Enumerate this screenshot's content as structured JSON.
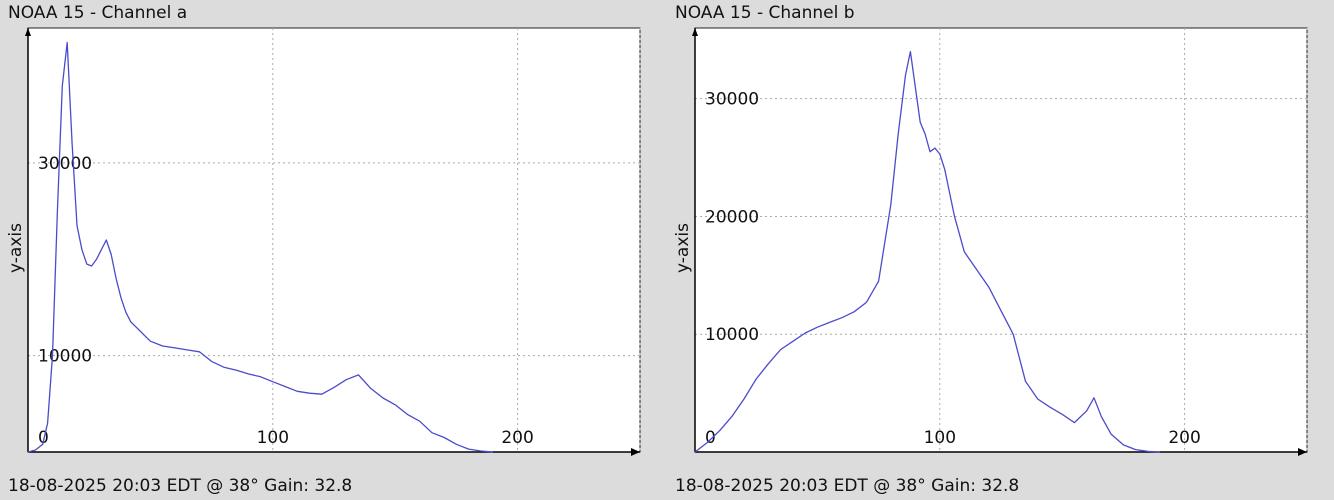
{
  "chart_data": [
    {
      "type": "line",
      "title": "NOAA 15 - Channel a",
      "footer": "18-08-2025 20:03 EDT @ 38° Gain: 32.8",
      "xlabel": "",
      "ylabel": "y-axis",
      "xlim": [
        0,
        250
      ],
      "ylim": [
        0,
        44000
      ],
      "x_ticks": [
        0,
        100,
        200
      ],
      "y_ticks": [
        10000,
        30000
      ],
      "grid": true,
      "line_color": "#4b4bcc",
      "series": [
        {
          "x": [
            0,
            3,
            6,
            8,
            10,
            12,
            14,
            16,
            18,
            20,
            22,
            24,
            26,
            28,
            30,
            32,
            34,
            36,
            38,
            40,
            42,
            44,
            46,
            48,
            50,
            55,
            60,
            65,
            70,
            75,
            80,
            85,
            90,
            95,
            100,
            105,
            110,
            115,
            120,
            125,
            130,
            135,
            140,
            145,
            150,
            155,
            160,
            165,
            170,
            175,
            180,
            185,
            190
          ],
          "y": [
            0,
            200,
            800,
            3000,
            10000,
            25000,
            38000,
            42500,
            32000,
            23500,
            21000,
            19500,
            19300,
            20000,
            21000,
            22000,
            20500,
            18000,
            16000,
            14500,
            13500,
            13000,
            12500,
            12000,
            11500,
            11000,
            10800,
            10600,
            10400,
            9400,
            8800,
            8500,
            8100,
            7800,
            7300,
            6800,
            6300,
            6100,
            6000,
            6700,
            7500,
            8000,
            6600,
            5600,
            4900,
            3900,
            3200,
            2000,
            1500,
            800,
            300,
            100,
            0
          ]
        }
      ]
    },
    {
      "type": "line",
      "title": "NOAA 15 - Channel b",
      "footer": "18-08-2025 20:03 EDT @ 38° Gain: 32.8",
      "xlabel": "",
      "ylabel": "y-axis",
      "xlim": [
        0,
        250
      ],
      "ylim": [
        0,
        36000
      ],
      "x_ticks": [
        0,
        100,
        200
      ],
      "y_ticks": [
        10000,
        20000,
        30000
      ],
      "grid": true,
      "line_color": "#4b4bcc",
      "series": [
        {
          "x": [
            0,
            5,
            10,
            15,
            20,
            25,
            30,
            35,
            40,
            45,
            50,
            55,
            60,
            65,
            70,
            75,
            80,
            83,
            86,
            88,
            90,
            92,
            94,
            96,
            98,
            100,
            102,
            104,
            106,
            108,
            110,
            115,
            120,
            125,
            130,
            135,
            140,
            145,
            150,
            155,
            160,
            163,
            166,
            170,
            175,
            180,
            185,
            190
          ],
          "y": [
            0,
            800,
            1800,
            3000,
            4500,
            6200,
            7500,
            8700,
            9400,
            10100,
            10600,
            11000,
            11400,
            11900,
            12700,
            14500,
            21000,
            27000,
            32000,
            34000,
            31000,
            28000,
            27000,
            25500,
            25800,
            25300,
            24000,
            22000,
            20000,
            18500,
            17000,
            15500,
            14000,
            12000,
            10000,
            6000,
            4500,
            3800,
            3200,
            2500,
            3500,
            4600,
            3000,
            1500,
            600,
            200,
            50,
            0
          ]
        }
      ]
    }
  ]
}
